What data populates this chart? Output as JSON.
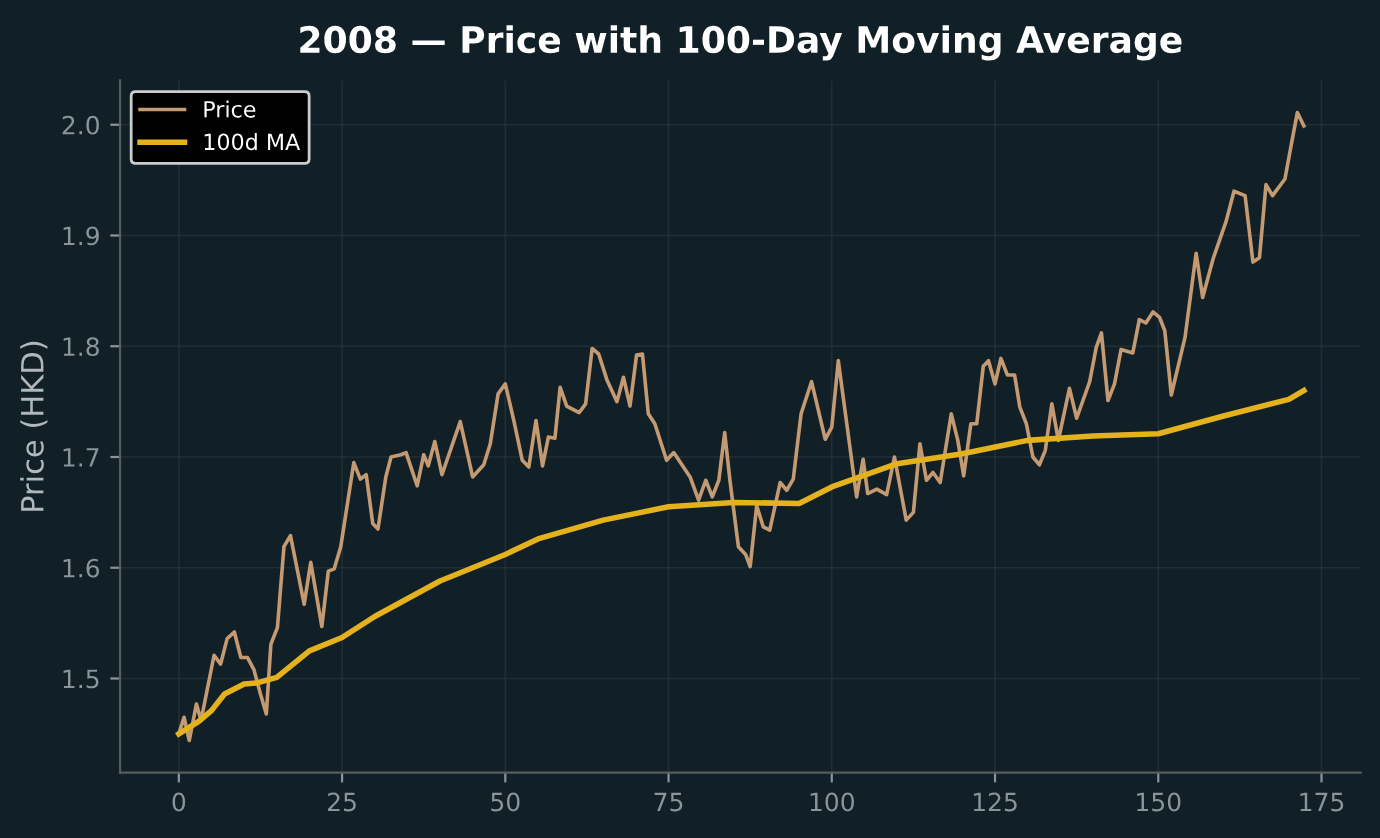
{
  "chart_data": {
    "type": "line",
    "title": "2008 — Price with 100-Day Moving Average",
    "ylabel": "Price (HKD)",
    "xlim": [
      -9,
      181
    ],
    "ylim": [
      1.415,
      2.04
    ],
    "xticks": [
      0,
      25,
      50,
      75,
      100,
      125,
      150,
      175
    ],
    "yticks": [
      1.5,
      1.6,
      1.7,
      1.8,
      1.9,
      {
        "value": 2,
        "label": "2.0"
      }
    ],
    "grid": true,
    "legend": "top left",
    "marker": "none",
    "line_style": "solid",
    "series": [
      {
        "name": "Price",
        "color": "#c49a72",
        "x": [
          0,
          0.8,
          1.6,
          2.7,
          3.4,
          5.4,
          6.4,
          7.4,
          8.5,
          9.5,
          10.5,
          11.5,
          12.5,
          13.4,
          14.1,
          15.1,
          16.1,
          17.1,
          19.2,
          20.2,
          21.9,
          22.9,
          23.8,
          24.8,
          26.8,
          27.8,
          28.7,
          29.7,
          30.5,
          31.7,
          32.5,
          34.0,
          34.8,
          36.5,
          37.5,
          38.2,
          39.2,
          40.3,
          43.1,
          45.0,
          46.7,
          47.7,
          48.9,
          50.0,
          51.3,
          52.6,
          53.6,
          54.7,
          55.7,
          56.6,
          57.6,
          58.4,
          59.4,
          61.3,
          62.3,
          63.3,
          64.3,
          65.6,
          67.1,
          68.1,
          69.1,
          70.1,
          71.0,
          71.9,
          72.9,
          74.7,
          75.8,
          78.3,
          79.6,
          80.7,
          81.7,
          82.7,
          83.6,
          84.4,
          85.7,
          86.8,
          87.5,
          88.5,
          89.5,
          90.5,
          92.1,
          93.1,
          94.1,
          95.3,
          96.9,
          99.0,
          100.0,
          101.0,
          103.8,
          104.8,
          105.5,
          106.9,
          108.4,
          109.6,
          111.4,
          112.5,
          113.5,
          114.5,
          115.5,
          116.6,
          118.3,
          119.3,
          120.2,
          121.3,
          122.2,
          123.2,
          124.0,
          125.0,
          125.9,
          126.9,
          128.0,
          128.8,
          129.8,
          130.8,
          131.8,
          132.7,
          133.7,
          134.7,
          136.4,
          137.5,
          139.5,
          140.5,
          141.3,
          142.3,
          143.3,
          144.3,
          146.1,
          147.1,
          148.1,
          149.2,
          150.2,
          151.0,
          152.0,
          154.1,
          155.8,
          156.8,
          158.4,
          160.4,
          161.6,
          163.3,
          164.5,
          165.5,
          166.5,
          167.5,
          169.4,
          170.4,
          171.3,
          172.3
        ],
        "values": [
          1.45,
          1.465,
          1.444,
          1.477,
          1.462,
          1.521,
          1.513,
          1.536,
          1.542,
          1.519,
          1.519,
          1.508,
          1.486,
          1.468,
          1.531,
          1.546,
          1.619,
          1.629,
          1.567,
          1.605,
          1.547,
          1.597,
          1.599,
          1.619,
          1.695,
          1.68,
          1.684,
          1.64,
          1.635,
          1.682,
          1.7,
          1.702,
          1.704,
          1.674,
          1.702,
          1.692,
          1.714,
          1.684,
          1.732,
          1.682,
          1.693,
          1.712,
          1.757,
          1.766,
          1.733,
          1.697,
          1.691,
          1.733,
          1.692,
          1.718,
          1.717,
          1.763,
          1.746,
          1.74,
          1.748,
          1.798,
          1.793,
          1.769,
          1.75,
          1.772,
          1.746,
          1.792,
          1.793,
          1.739,
          1.73,
          1.697,
          1.704,
          1.682,
          1.661,
          1.679,
          1.664,
          1.679,
          1.722,
          1.679,
          1.619,
          1.612,
          1.601,
          1.656,
          1.637,
          1.634,
          1.677,
          1.67,
          1.68,
          1.739,
          1.768,
          1.716,
          1.727,
          1.787,
          1.664,
          1.698,
          1.667,
          1.671,
          1.666,
          1.7,
          1.643,
          1.65,
          1.712,
          1.679,
          1.686,
          1.677,
          1.739,
          1.715,
          1.683,
          1.73,
          1.73,
          1.782,
          1.787,
          1.766,
          1.789,
          1.774,
          1.774,
          1.745,
          1.73,
          1.7,
          1.693,
          1.706,
          1.748,
          1.715,
          1.762,
          1.735,
          1.768,
          1.799,
          1.812,
          1.751,
          1.766,
          1.797,
          1.794,
          1.824,
          1.821,
          1.831,
          1.826,
          1.814,
          1.756,
          1.808,
          1.884,
          1.844,
          1.879,
          1.913,
          1.94,
          1.936,
          1.876,
          1.88,
          1.946,
          1.936,
          1.951,
          1.983,
          2.011,
          1.999
        ]
      },
      {
        "name": "100d MA",
        "color": "#e3b21c",
        "x": [
          0,
          3,
          5,
          7,
          10,
          12,
          15,
          20,
          25,
          30,
          40,
          50,
          55,
          65,
          75,
          85,
          95,
          100,
          110,
          120,
          130,
          140,
          150,
          160,
          170,
          172.3
        ],
        "values": [
          1.45,
          1.461,
          1.471,
          1.486,
          1.495,
          1.496,
          1.501,
          1.525,
          1.537,
          1.556,
          1.588,
          1.612,
          1.626,
          1.643,
          1.655,
          1.659,
          1.658,
          1.673,
          1.694,
          1.703,
          1.715,
          1.719,
          1.721,
          1.737,
          1.752,
          1.76
        ]
      }
    ]
  }
}
